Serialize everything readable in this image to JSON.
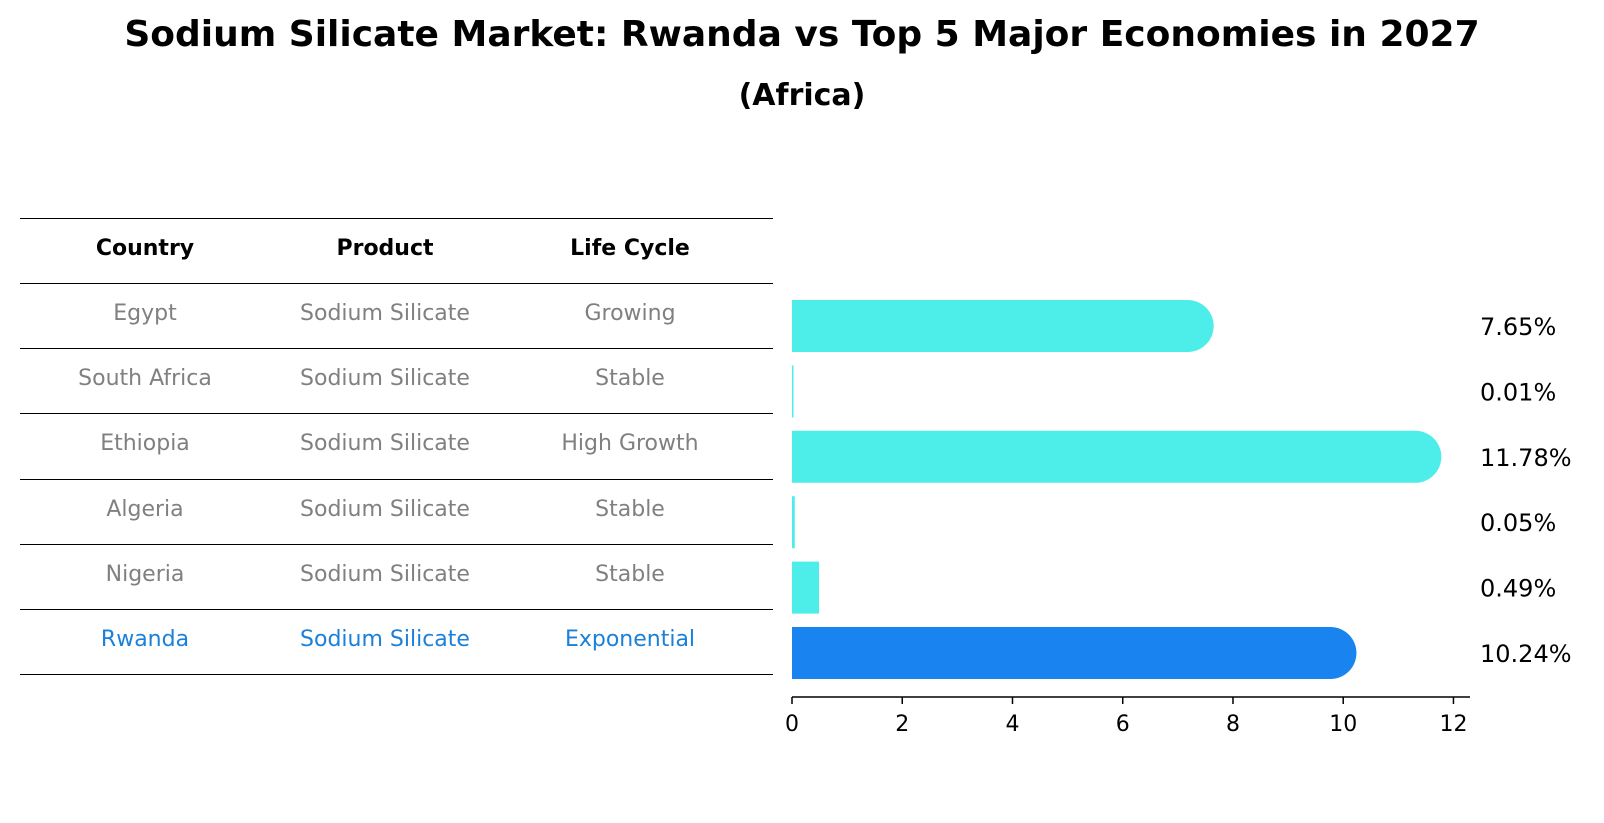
{
  "title": "Sodium Silicate Market: Rwanda vs Top 5 Major Economies in 2027",
  "subtitle": "(Africa)",
  "table": {
    "headers": [
      "Country",
      "Product",
      "Life Cycle"
    ],
    "rows": [
      {
        "country": "Egypt",
        "product": "Sodium Silicate",
        "life_cycle": "Growing",
        "highlight": false
      },
      {
        "country": "South Africa",
        "product": "Sodium Silicate",
        "life_cycle": "Stable",
        "highlight": false
      },
      {
        "country": "Ethiopia",
        "product": "Sodium Silicate",
        "life_cycle": "High Growth",
        "highlight": false
      },
      {
        "country": "Algeria",
        "product": "Sodium Silicate",
        "life_cycle": "Stable",
        "highlight": false
      },
      {
        "country": "Nigeria",
        "product": "Sodium Silicate",
        "life_cycle": "Stable",
        "highlight": false
      },
      {
        "country": "Rwanda",
        "product": "Sodium Silicate",
        "life_cycle": "Exponential",
        "highlight": true
      }
    ]
  },
  "chart_data": {
    "type": "bar",
    "orientation": "horizontal",
    "categories": [
      "Egypt",
      "South Africa",
      "Ethiopia",
      "Algeria",
      "Nigeria",
      "Rwanda"
    ],
    "values": [
      7.65,
      0.01,
      11.78,
      0.05,
      0.49,
      10.24
    ],
    "labels": [
      "7.65%",
      "0.01%",
      "11.78%",
      "0.05%",
      "0.49%",
      "10.24%"
    ],
    "xlim": [
      0,
      12.3
    ],
    "xticks": [
      0,
      2,
      4,
      6,
      8,
      10,
      12
    ],
    "colors": {
      "default": "#4deeea",
      "highlight": "#1984f0"
    },
    "highlight_index": 5,
    "grid": false
  }
}
